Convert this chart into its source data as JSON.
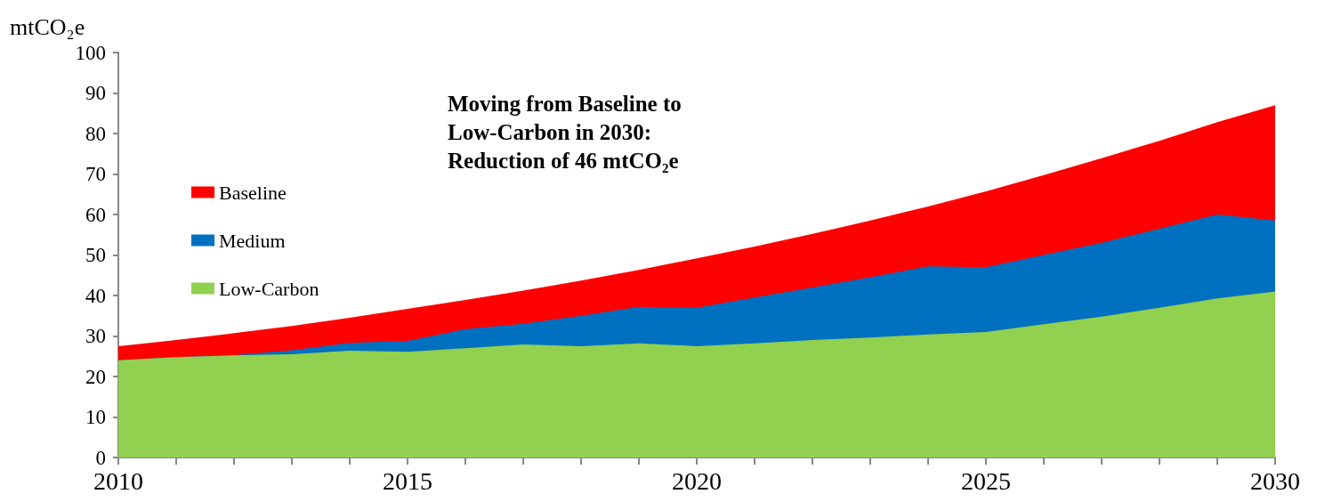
{
  "chart_data": {
    "type": "area",
    "ylabel": "mtCO₂e",
    "annotations": [
      "Moving from Baseline to\nLow-Carbon in 2030:\nReduction of 46 mtCO₂e"
    ],
    "x": [
      2010,
      2011,
      2012,
      2013,
      2014,
      2015,
      2016,
      2017,
      2018,
      2019,
      2020,
      2021,
      2022,
      2023,
      2024,
      2025,
      2026,
      2027,
      2028,
      2029,
      2030
    ],
    "series": [
      {
        "name": "Baseline",
        "color": "#ff0000",
        "values": [
          27.5,
          29,
          30.7,
          32.5,
          34.5,
          36.7,
          38.9,
          41.2,
          43.7,
          46.3,
          49.2,
          52.1,
          55.2,
          58.5,
          62,
          65.7,
          69.7,
          73.9,
          78.2,
          82.8,
          87
        ]
      },
      {
        "name": "Medium",
        "color": "#0070c0",
        "values": [
          24,
          24.8,
          25.3,
          26.5,
          28.3,
          28.8,
          31.7,
          33,
          35,
          37.2,
          37,
          39.5,
          42,
          44.5,
          47.2,
          47,
          50,
          53,
          56.5,
          60,
          58.5
        ]
      },
      {
        "name": "Low-Carbon",
        "color": "#92d050",
        "values": [
          24,
          24.8,
          25.2,
          25.5,
          26.4,
          26.1,
          27,
          27.9,
          27.5,
          28.2,
          27.5,
          28.2,
          29,
          29.6,
          30.4,
          31,
          32.9,
          34.8,
          37,
          39.3,
          41
        ]
      }
    ],
    "xlim": [
      2010,
      2030
    ],
    "xticks": [
      2010,
      2015,
      2020,
      2025,
      2030
    ],
    "ylim": [
      0,
      100
    ],
    "yticks": [
      0,
      10,
      20,
      30,
      40,
      50,
      60,
      70,
      80,
      90,
      100
    ],
    "legend": "top left",
    "grid": false
  }
}
